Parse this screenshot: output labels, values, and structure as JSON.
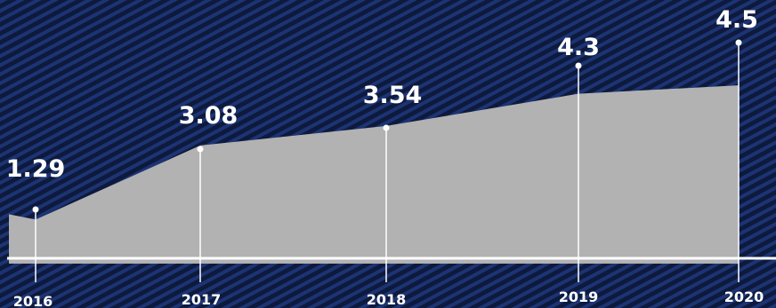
{
  "colors": {
    "background": "#0e1a3d",
    "background_stripe": "#1c3474",
    "area_fill": "#b2b2b2",
    "axis_line": "#ffffff",
    "text": "#ffffff"
  },
  "chart_data": {
    "type": "area",
    "title": "",
    "xlabel": "",
    "ylabel": "",
    "categories": [
      "2016",
      "2017",
      "2018",
      "2019",
      "2020"
    ],
    "values": [
      1.29,
      3.08,
      3.54,
      4.3,
      4.5
    ],
    "data_labels": [
      "1.29",
      "3.08",
      "3.54",
      "4.3",
      "4.5"
    ],
    "ylim": [
      0,
      5.8
    ],
    "grid": false,
    "legend": "none"
  }
}
